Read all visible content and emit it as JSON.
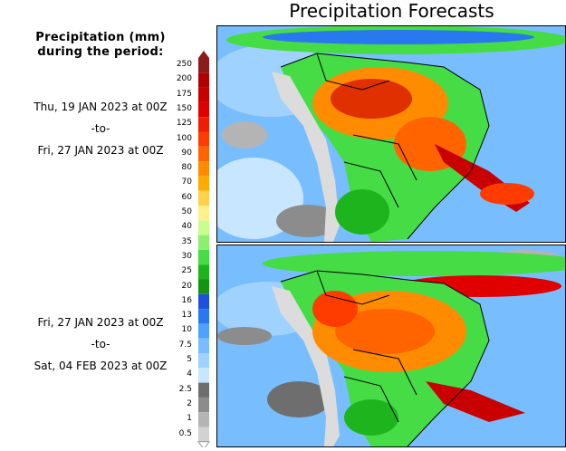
{
  "title": "Precipitation Forecasts",
  "legend": {
    "title_line1": "Precipitation (mm)",
    "title_line2": "during the period:",
    "unit": "mm",
    "levels": [
      {
        "label": "250",
        "color": "#8b1c1c"
      },
      {
        "label": "200",
        "color": "#b00000"
      },
      {
        "label": "175",
        "color": "#c80000"
      },
      {
        "label": "150",
        "color": "#e00000"
      },
      {
        "label": "125",
        "color": "#f01e00"
      },
      {
        "label": "100",
        "color": "#ff3c00"
      },
      {
        "label": "90",
        "color": "#ff6400"
      },
      {
        "label": "80",
        "color": "#ff8c00"
      },
      {
        "label": "70",
        "color": "#ffaa00"
      },
      {
        "label": "60",
        "color": "#ffd24a"
      },
      {
        "label": "50",
        "color": "#fff08c"
      },
      {
        "label": "40",
        "color": "#c8ff8c"
      },
      {
        "label": "35",
        "color": "#8cf06e"
      },
      {
        "label": "30",
        "color": "#46dc46"
      },
      {
        "label": "25",
        "color": "#1eb41e"
      },
      {
        "label": "20",
        "color": "#129612"
      },
      {
        "label": "16",
        "color": "#1e50dc"
      },
      {
        "label": "13",
        "color": "#2878f0"
      },
      {
        "label": "10",
        "color": "#50a0ff"
      },
      {
        "label": "7.5",
        "color": "#78beff"
      },
      {
        "label": "5",
        "color": "#a0d2ff"
      },
      {
        "label": "4",
        "color": "#c8e6ff"
      },
      {
        "label": "2.5",
        "color": "#6e6e6e"
      },
      {
        "label": "2",
        "color": "#8c8c8c"
      },
      {
        "label": "1",
        "color": "#b4b4b4"
      },
      {
        "label": "0.5",
        "color": "#d2d2d2"
      }
    ]
  },
  "periods": [
    {
      "start": "Thu, 19 JAN 2023 at 00Z",
      "separator": "-to-",
      "end": "Fri, 27 JAN 2023 at 00Z"
    },
    {
      "start": "Fri, 27 JAN 2023 at 00Z",
      "separator": "-to-",
      "end": "Sat, 04 FEB 2023 at 00Z"
    }
  ],
  "maps": [
    {
      "region": "South America",
      "rain_zones": [
        {
          "name": "amazon",
          "intensity": "heavy",
          "color": "#e03000"
        },
        {
          "name": "central-brazil",
          "intensity": "heavy",
          "color": "#ff6400"
        },
        {
          "name": "sacz-band",
          "intensity": "very-heavy",
          "color": "#c80000"
        },
        {
          "name": "itcz",
          "intensity": "moderate",
          "color": "#46dc46"
        },
        {
          "name": "pacific-dry",
          "intensity": "light",
          "color": "#a0d2ff"
        }
      ]
    },
    {
      "region": "South America",
      "rain_zones": [
        {
          "name": "amazon",
          "intensity": "heavy",
          "color": "#ff6400"
        },
        {
          "name": "central-brazil",
          "intensity": "heavy",
          "color": "#ff8c00"
        },
        {
          "name": "itcz",
          "intensity": "heavy",
          "color": "#e00000"
        },
        {
          "name": "southeast-brazil",
          "intensity": "heavy",
          "color": "#c80000"
        },
        {
          "name": "pacific-dry",
          "intensity": "light",
          "color": "#a0d2ff"
        }
      ]
    }
  ],
  "colors": {
    "land_dry": "#dcdcdc",
    "ocean": "#50a0ff",
    "border": "#000000"
  }
}
